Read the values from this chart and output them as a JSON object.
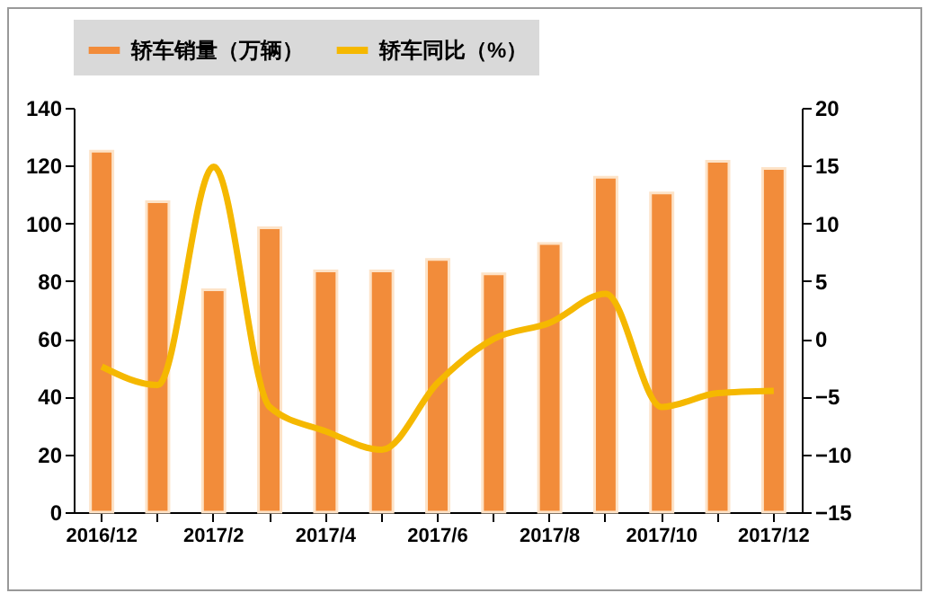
{
  "chart_data": {
    "type": "bar",
    "categories": [
      "2016/12",
      null,
      "2017/2",
      null,
      "2017/4",
      null,
      "2017/6",
      null,
      "2017/8",
      null,
      "2017/10",
      null,
      "2017/12"
    ],
    "series": [
      {
        "name": "轿车销量（万辆）",
        "color": "#f28c3a",
        "values": [
          125,
          107.5,
          77,
          98.5,
          83.5,
          83.5,
          87.5,
          82.5,
          93,
          116,
          110.5,
          121.5,
          119
        ]
      },
      {
        "name": "轿车同比（%）",
        "type": "line",
        "axis": "y2",
        "color": "#f5b800",
        "values": [
          -2.4,
          -4,
          14.9,
          -5.9,
          -8,
          -9.6,
          -3.8,
          0,
          1.4,
          3.9,
          -5.9,
          -4.7,
          -4.5
        ]
      }
    ],
    "ylim": [
      0,
      140
    ],
    "yticks": [
      0,
      20,
      40,
      60,
      80,
      100,
      120,
      140
    ],
    "y2lim": [
      -15,
      20
    ],
    "y2ticks": [
      -15,
      -10,
      -5,
      0,
      5,
      10,
      15,
      20
    ],
    "grid": false,
    "legend": "top",
    "marker": "none",
    "line_style": "solid"
  }
}
